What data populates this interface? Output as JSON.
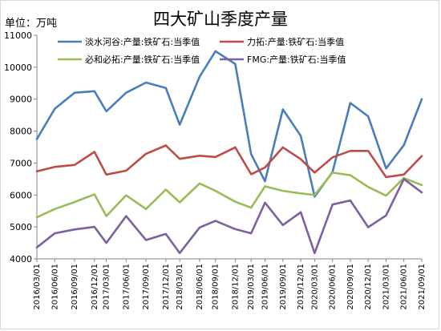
{
  "header": {
    "unit_label": "单位：万吨"
  },
  "chart_data": {
    "type": "line",
    "title": "四大矿山季度产量",
    "ylim": [
      4000,
      11000
    ],
    "yticks": [
      4000,
      5000,
      6000,
      7000,
      8000,
      9000,
      10000,
      11000
    ],
    "grid": false,
    "legend_placement": "top",
    "categories": [
      "2016/03/01",
      "2016/06/01",
      "2016/09/01",
      "2016/12/01",
      "2017/03/01",
      "2017/06/01",
      "2017/09/01",
      "2017/12/01",
      "2018/03/01",
      "2018/06/01",
      "2018/09/01",
      "2018/12/01",
      "2019/03/01",
      "2019/06/01",
      "2019/09/01",
      "2019/12/01",
      "2020/03/01",
      "2020/06/01",
      "2020/09/01",
      "2020/12/01",
      "2021/03/01",
      "2021/06/01",
      "2021/09/01"
    ],
    "x_index": [
      0,
      0.9,
      1.9,
      2.9,
      3.5,
      4.5,
      5.5,
      6.5,
      7.2,
      8.2,
      9.0,
      10.0,
      10.8,
      11.5,
      12.4,
      13.3,
      14.0,
      14.9,
      15.8,
      16.7,
      17.6,
      18.5,
      19.4
    ],
    "series": [
      {
        "name": "淡水河谷:产量:铁矿石:当季值",
        "color": "#4a7ebb",
        "values": [
          7750,
          8700,
          9200,
          9250,
          8620,
          9200,
          9520,
          9350,
          8200,
          9700,
          10500,
          10100,
          7280,
          6430,
          8680,
          7850,
          5950,
          6720,
          8880,
          8460,
          6830,
          7560,
          9000
        ]
      },
      {
        "name": "力拓:产量:铁矿石:当季值",
        "color": "#be4b48",
        "values": [
          6740,
          6880,
          6940,
          7350,
          6640,
          6760,
          7290,
          7550,
          7130,
          7230,
          7190,
          7490,
          6650,
          6860,
          7490,
          7120,
          6700,
          7180,
          7380,
          7380,
          6560,
          6640,
          7220
        ]
      },
      {
        "name": "必和必拓:产量:铁矿石:当季值",
        "color": "#9bbb59",
        "values": [
          5300,
          5560,
          5780,
          6020,
          5340,
          5990,
          5560,
          6170,
          5770,
          6360,
          6130,
          5790,
          5600,
          6270,
          6130,
          6050,
          6000,
          6700,
          6620,
          6250,
          5980,
          6530,
          6310
        ]
      },
      {
        "name": "FMG:产量:铁矿石:当季值",
        "color": "#7d60a0",
        "values": [
          4360,
          4800,
          4920,
          5000,
          4500,
          5340,
          4590,
          4780,
          4180,
          4980,
          5190,
          4930,
          4800,
          5760,
          5060,
          5460,
          4180,
          5700,
          5830,
          4990,
          5360,
          6500,
          6080
        ]
      }
    ]
  }
}
